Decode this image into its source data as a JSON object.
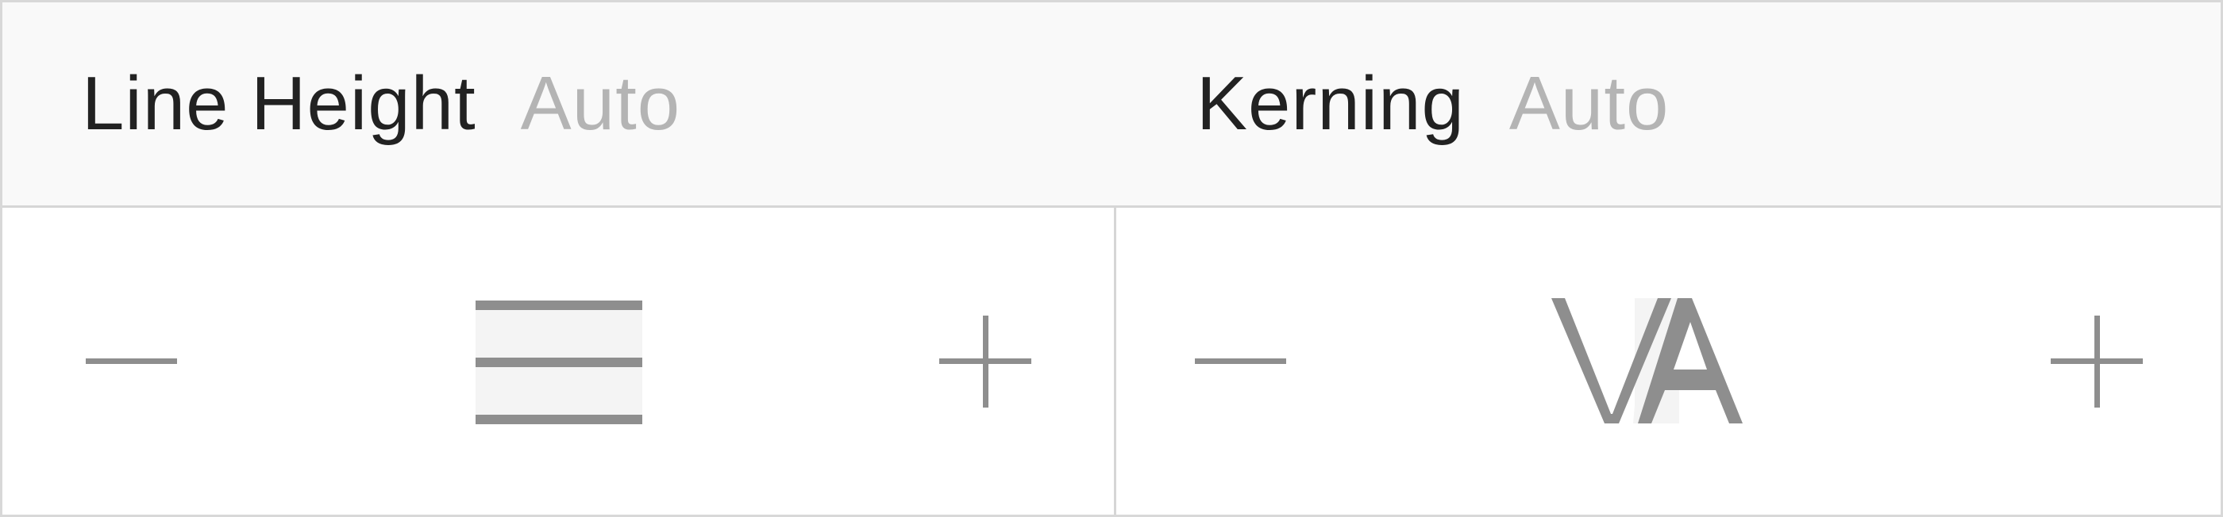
{
  "line_height": {
    "label": "Line Height",
    "value": "Auto",
    "decrease_icon": "minus-icon",
    "increase_icon": "plus-icon",
    "glyph_icon": "line-height-icon"
  },
  "kerning": {
    "label": "Kerning",
    "value": "Auto",
    "decrease_icon": "minus-icon",
    "increase_icon": "plus-icon",
    "glyph_icon": "kerning-va-icon"
  },
  "colors": {
    "header_bg": "#f9f9f9",
    "title": "#222222",
    "value": "#b4b4b4",
    "icon": "#8e8e8e",
    "border": "#d6d6d6"
  }
}
